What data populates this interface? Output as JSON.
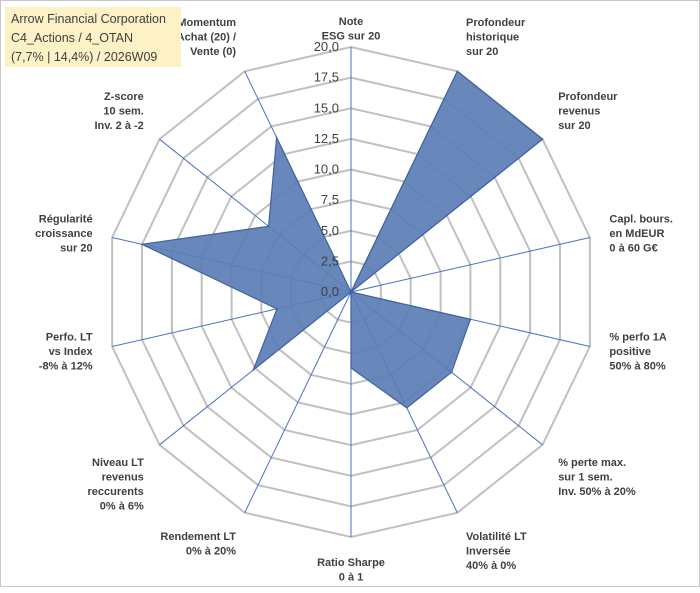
{
  "info": {
    "company": "Arrow Financial Corporation",
    "portfolio": "C4_Actions / 4_OTAN",
    "stats": "(7,7% | 14,4%) / 2026W09"
  },
  "chart_data": {
    "type": "radar",
    "rmin": 0,
    "rmax": 20,
    "ticks": [
      "0,0",
      "2,5",
      "5,0",
      "7,5",
      "10,0",
      "12,5",
      "15,0",
      "17,5",
      "20,0"
    ],
    "tick_values": [
      0,
      2.5,
      5,
      7.5,
      10,
      12.5,
      15,
      17.5,
      20
    ],
    "axes": [
      {
        "label": [
          "Note",
          "ESG sur 20"
        ],
        "value": 0
      },
      {
        "label": [
          "Profondeur",
          "historique",
          "sur 20"
        ],
        "value": 20
      },
      {
        "label": [
          "Profondeur",
          "revenus",
          "sur 20"
        ],
        "value": 20
      },
      {
        "label": [
          "Capl. bours.",
          "en MdEUR",
          "0 à 60 G€"
        ],
        "value": 0
      },
      {
        "label": [
          "% perfo 1A",
          "positive",
          "50% à 80%"
        ],
        "value": 10
      },
      {
        "label": [
          "% perte max.",
          "sur 1 sem.",
          "Inv. 50% à 20%"
        ],
        "value": 10.5
      },
      {
        "label": [
          "Volatilité LT",
          "Inversée",
          "40% à 0%"
        ],
        "value": 10.5
      },
      {
        "label": [
          "Ratio Sharpe",
          "0 à 1"
        ],
        "value": 6.2
      },
      {
        "label": [
          "Rendement LT",
          "0% à 20%"
        ],
        "value": 0
      },
      {
        "label": [
          "Niveau LT",
          "revenus",
          "reccurents",
          "0% à 6%"
        ],
        "value": 10.2
      },
      {
        "label": [
          "Perfo. LT",
          "vs Index",
          "-8% à 12%"
        ],
        "value": 6.2
      },
      {
        "label": [
          "Régularité",
          "croissance",
          "sur 20"
        ],
        "value": 17.5
      },
      {
        "label": [
          "Z-score",
          "10 sem.",
          "Inv. 2 à -2"
        ],
        "value": 8.6
      },
      {
        "label": [
          "Momentum",
          "Achat (20) /",
          "Vente (0)"
        ],
        "value": 14
      }
    ],
    "series": [
      {
        "name": "Arrow Financial Corporation",
        "color": "#5b7db5",
        "stroke": "#3f62a0"
      }
    ],
    "grid_color": "#c0c0c0",
    "spoke_color": "#4a72c2"
  }
}
